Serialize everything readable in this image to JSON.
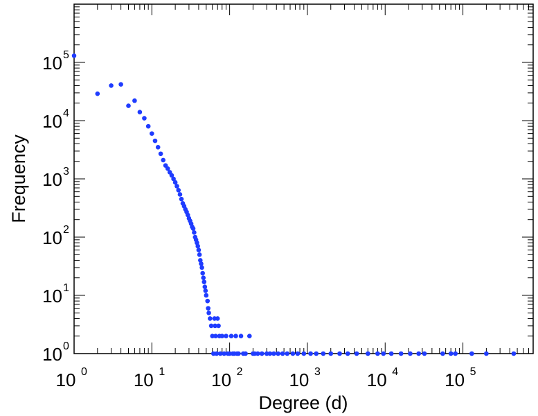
{
  "chart_data": {
    "type": "scatter",
    "xlabel": "Degree (d)",
    "ylabel": "Frequency",
    "x_scale": "log",
    "y_scale": "log",
    "xlim": [
      1,
      800000
    ],
    "ylim": [
      1,
      1000000
    ],
    "grid": false,
    "marker_color": "#1f3cff",
    "x_tick_labels": [
      {
        "base": "10",
        "exp": "0",
        "value": 1
      },
      {
        "base": "10",
        "exp": "1",
        "value": 10
      },
      {
        "base": "10",
        "exp": "2",
        "value": 100
      },
      {
        "base": "10",
        "exp": "3",
        "value": 1000
      },
      {
        "base": "10",
        "exp": "4",
        "value": 10000
      },
      {
        "base": "10",
        "exp": "5",
        "value": 100000
      }
    ],
    "y_tick_labels": [
      {
        "base": "10",
        "exp": "0",
        "value": 1
      },
      {
        "base": "10",
        "exp": "1",
        "value": 10
      },
      {
        "base": "10",
        "exp": "2",
        "value": 100
      },
      {
        "base": "10",
        "exp": "3",
        "value": 1000
      },
      {
        "base": "10",
        "exp": "4",
        "value": 10000
      },
      {
        "base": "10",
        "exp": "5",
        "value": 100000
      }
    ],
    "series": [
      {
        "points": [
          [
            1,
            130000
          ],
          [
            2,
            29000
          ],
          [
            3,
            40000
          ],
          [
            4,
            42000
          ],
          [
            5,
            18000
          ],
          [
            6,
            22000
          ],
          [
            7,
            14000
          ],
          [
            8,
            11000
          ],
          [
            9,
            8000
          ],
          [
            10,
            6000
          ],
          [
            11,
            4500
          ],
          [
            12,
            3500
          ],
          [
            13,
            2700
          ],
          [
            14,
            2100
          ],
          [
            15,
            1700
          ],
          [
            16,
            1500
          ],
          [
            17,
            1300
          ],
          [
            18,
            1150
          ],
          [
            19,
            1000
          ],
          [
            20,
            870
          ],
          [
            21,
            750
          ],
          [
            22,
            640
          ],
          [
            23,
            540
          ],
          [
            24,
            450
          ],
          [
            25,
            380
          ],
          [
            26,
            340
          ],
          [
            27,
            300
          ],
          [
            28,
            270
          ],
          [
            29,
            240
          ],
          [
            30,
            210
          ],
          [
            31,
            190
          ],
          [
            32,
            170
          ],
          [
            33,
            150
          ],
          [
            34,
            140
          ],
          [
            35,
            120
          ],
          [
            36,
            100
          ],
          [
            37,
            90
          ],
          [
            38,
            80
          ],
          [
            39,
            70
          ],
          [
            40,
            60
          ],
          [
            41,
            50
          ],
          [
            42,
            40
          ],
          [
            43,
            35
          ],
          [
            44,
            30
          ],
          [
            45,
            24
          ],
          [
            46,
            20
          ],
          [
            47,
            17
          ],
          [
            48,
            14
          ],
          [
            49,
            12
          ],
          [
            50,
            10
          ],
          [
            52,
            8
          ],
          [
            53,
            6
          ],
          [
            54,
            5
          ],
          [
            56,
            4
          ],
          [
            58,
            3
          ],
          [
            60,
            2
          ],
          [
            62,
            1
          ],
          [
            64,
            4
          ],
          [
            65,
            3
          ],
          [
            66,
            2
          ],
          [
            68,
            1
          ],
          [
            70,
            4
          ],
          [
            72,
            3
          ],
          [
            74,
            2
          ],
          [
            76,
            1
          ],
          [
            80,
            2
          ],
          [
            85,
            1
          ],
          [
            90,
            2
          ],
          [
            95,
            1
          ],
          [
            100,
            1
          ],
          [
            105,
            2
          ],
          [
            110,
            1
          ],
          [
            115,
            1
          ],
          [
            120,
            2
          ],
          [
            125,
            1
          ],
          [
            130,
            1
          ],
          [
            140,
            2
          ],
          [
            150,
            1
          ],
          [
            160,
            1
          ],
          [
            180,
            2
          ],
          [
            200,
            1
          ],
          [
            210,
            1
          ],
          [
            230,
            1
          ],
          [
            260,
            1
          ],
          [
            300,
            1
          ],
          [
            330,
            1
          ],
          [
            370,
            1
          ],
          [
            420,
            1
          ],
          [
            480,
            1
          ],
          [
            550,
            1
          ],
          [
            650,
            1
          ],
          [
            750,
            1
          ],
          [
            900,
            1
          ],
          [
            1100,
            1
          ],
          [
            1300,
            1
          ],
          [
            1600,
            1
          ],
          [
            2000,
            1
          ],
          [
            2600,
            1
          ],
          [
            3300,
            1
          ],
          [
            4300,
            1
          ],
          [
            6000,
            1
          ],
          [
            8000,
            1
          ],
          [
            9500,
            1
          ],
          [
            12000,
            1
          ],
          [
            16000,
            1
          ],
          [
            21000,
            1
          ],
          [
            27000,
            1
          ],
          [
            32000,
            1
          ],
          [
            55000,
            1
          ],
          [
            70000,
            1
          ],
          [
            80000,
            1
          ],
          [
            130000,
            1
          ],
          [
            200000,
            1
          ],
          [
            450000,
            1
          ]
        ]
      }
    ]
  }
}
